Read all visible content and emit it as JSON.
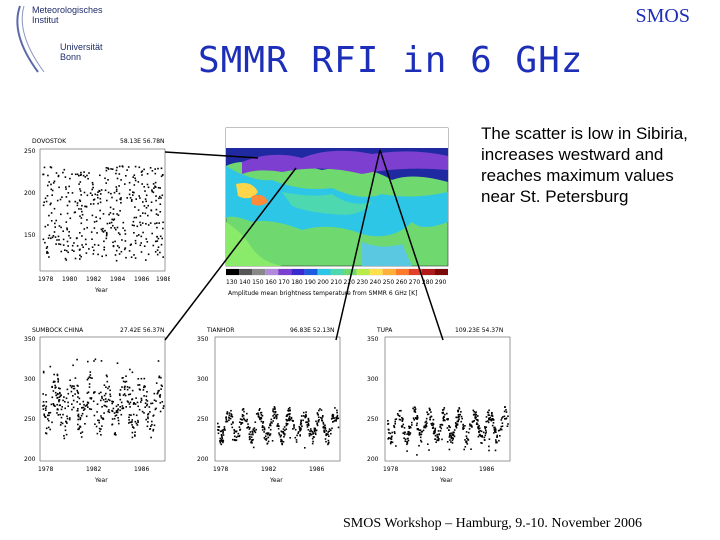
{
  "logo": {
    "line1": "Meteorologisches",
    "line2": "Institut",
    "line3": "Universität",
    "line4": "Bonn"
  },
  "corner_label": "SMOS",
  "title": "SMMR RFI in 6 GHz",
  "description": "The scatter is low in Sibiria, increases westward and reaches maximum values near St. Petersburg",
  "footer": "SMOS Workshop – Hamburg, 9.-10. November 2006",
  "map": {
    "caption": "Amplitude mean brightness temperature from SMMR 6 GHz [K]",
    "colorbar_ticks": [
      "130",
      "140",
      "150",
      "160",
      "170",
      "180",
      "190",
      "200",
      "210",
      "220",
      "230",
      "240",
      "250",
      "260",
      "270",
      "280",
      "290"
    ]
  },
  "plots": {
    "top_left": {
      "title": "DOVOSTOK",
      "coords": "58.13E 56.78N",
      "yticks": [
        "250",
        "200",
        "150"
      ]
    },
    "bottom_1": {
      "title": "SUMBOCK CHINA",
      "coords": "27.42E 56.37N",
      "yticks": [
        "350",
        "300",
        "250",
        "200"
      ]
    },
    "bottom_2": {
      "title": "TIANHOR",
      "coords": "96.83E 52.13N",
      "yticks": [
        "350",
        "300",
        "250",
        "200"
      ]
    },
    "bottom_3": {
      "title": "TUPA",
      "coords": "109.23E 54.37N",
      "yticks": [
        "350",
        "300",
        "250",
        "200"
      ]
    },
    "xticks": [
      "1978",
      "1980",
      "1982",
      "1984",
      "1986",
      "1988"
    ],
    "xlabel": "Year"
  }
}
